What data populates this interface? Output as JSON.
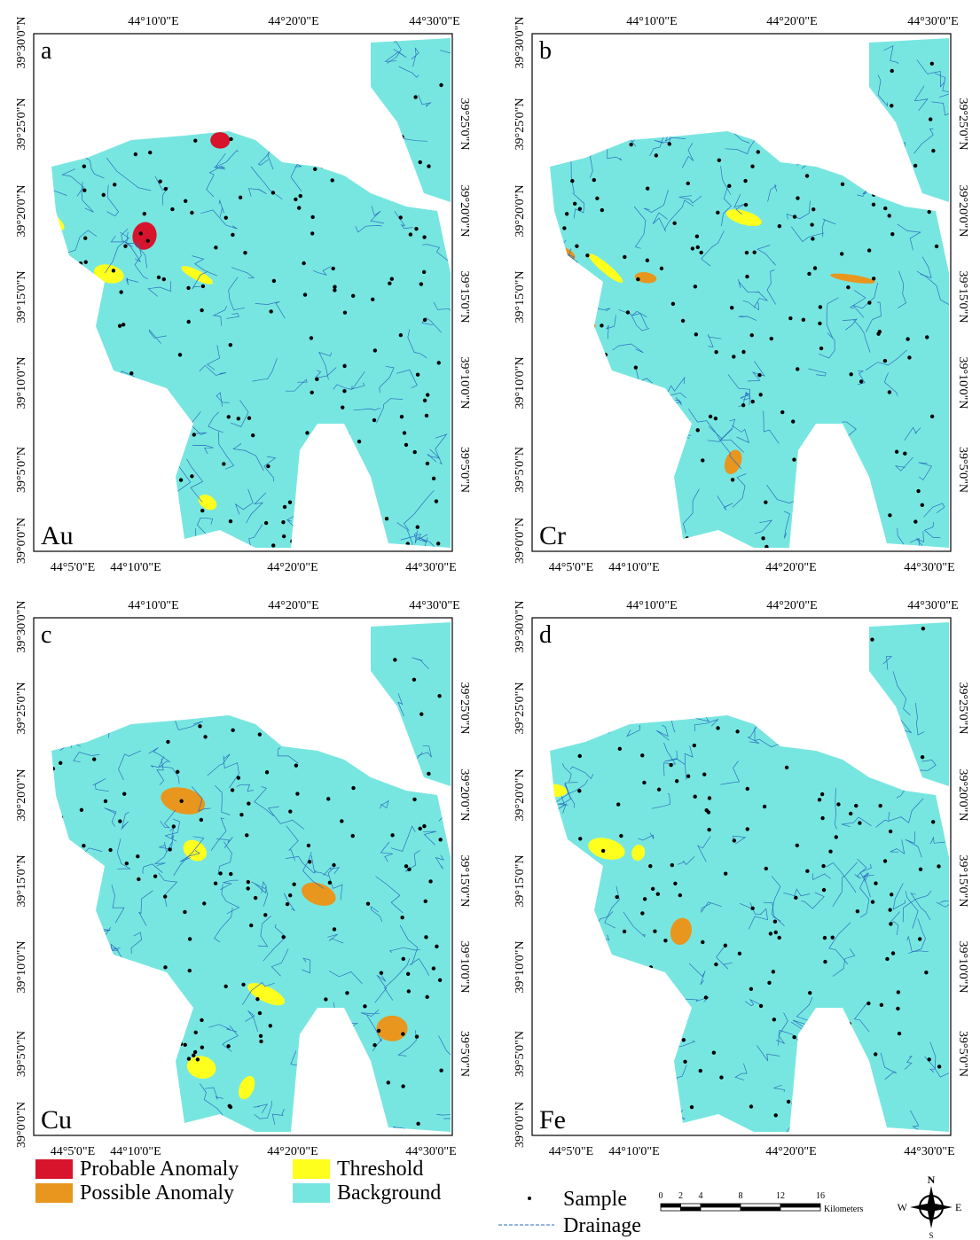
{
  "panels": [
    {
      "letter": "a",
      "element": "Au"
    },
    {
      "letter": "b",
      "element": "Cr"
    },
    {
      "letter": "c",
      "element": "Cu"
    },
    {
      "letter": "d",
      "element": "Fe"
    }
  ],
  "top_axis_labels": [
    "44°10'0\"E",
    "44°20'0\"E",
    "44°30'0\"E"
  ],
  "bottom_axis_labels": [
    "44°5'0\"E",
    "44°10'0\"E",
    "44°20'0\"E",
    "44°30'0\"E"
  ],
  "left_axis_labels": [
    "39°30'0\"N",
    "39°25'0\"N",
    "39°20'0\"N",
    "39°15'0\"N",
    "39°10'0\"N",
    "39°5'0\"N",
    "39°0'0\"N"
  ],
  "right_axis_labels": [
    "39°25'0\"N",
    "39°20'0\"N",
    "39°15'0\"N",
    "39°10'0\"N",
    "39°5'0\"N"
  ],
  "legend": [
    {
      "label": "Probable Anomaly",
      "color": "#d7142c"
    },
    {
      "label": "Possible Anomaly",
      "color": "#e8961e"
    },
    {
      "label": "Threshold",
      "color": "#ffff1e"
    },
    {
      "label": "Background",
      "color": "#78e6e0"
    },
    {
      "label": "Sample"
    },
    {
      "label": "Drainage"
    }
  ],
  "scale_bar": {
    "ticks": [
      0,
      2,
      4,
      8,
      12,
      16
    ],
    "unit": "Kilometers"
  },
  "north_arrow": {
    "n": "N",
    "e": "E",
    "s": "S",
    "w": "W"
  }
}
